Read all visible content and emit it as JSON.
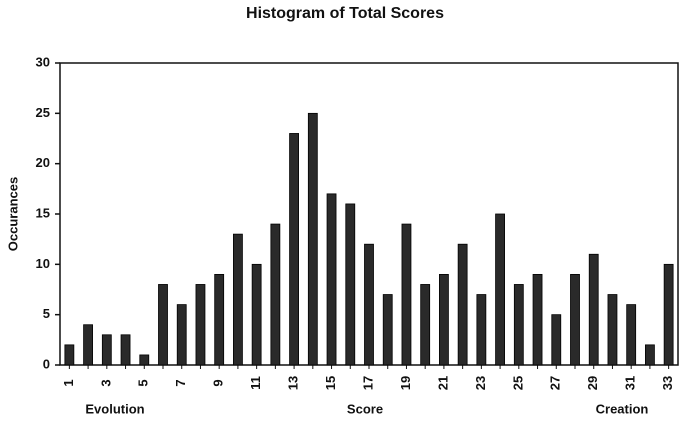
{
  "chart_data": {
    "type": "bar",
    "title": "Histogram of Total Scores",
    "x_label": "Score",
    "y_label": "Occurances",
    "annotations": [
      "Evolution",
      "Creation"
    ],
    "categories": [
      "1",
      null,
      "3",
      null,
      "5",
      null,
      "7",
      null,
      "9",
      null,
      "11",
      null,
      "13",
      null,
      "15",
      null,
      "17",
      null,
      "19",
      null,
      "21",
      null,
      "23",
      null,
      "25",
      null,
      "27",
      null,
      "29",
      null,
      "31",
      null,
      "33"
    ],
    "values": [
      2,
      4,
      3,
      3,
      1,
      8,
      6,
      8,
      9,
      13,
      10,
      14,
      23,
      25,
      17,
      16,
      12,
      7,
      14,
      8,
      9,
      12,
      7,
      15,
      8,
      9,
      5,
      9,
      11,
      7,
      6,
      2,
      10
    ],
    "color": "#2a2a2a",
    "ylim": [
      0,
      30
    ],
    "yticks": [
      0,
      5,
      10,
      15,
      20,
      25,
      30
    ],
    "grid": false
  }
}
